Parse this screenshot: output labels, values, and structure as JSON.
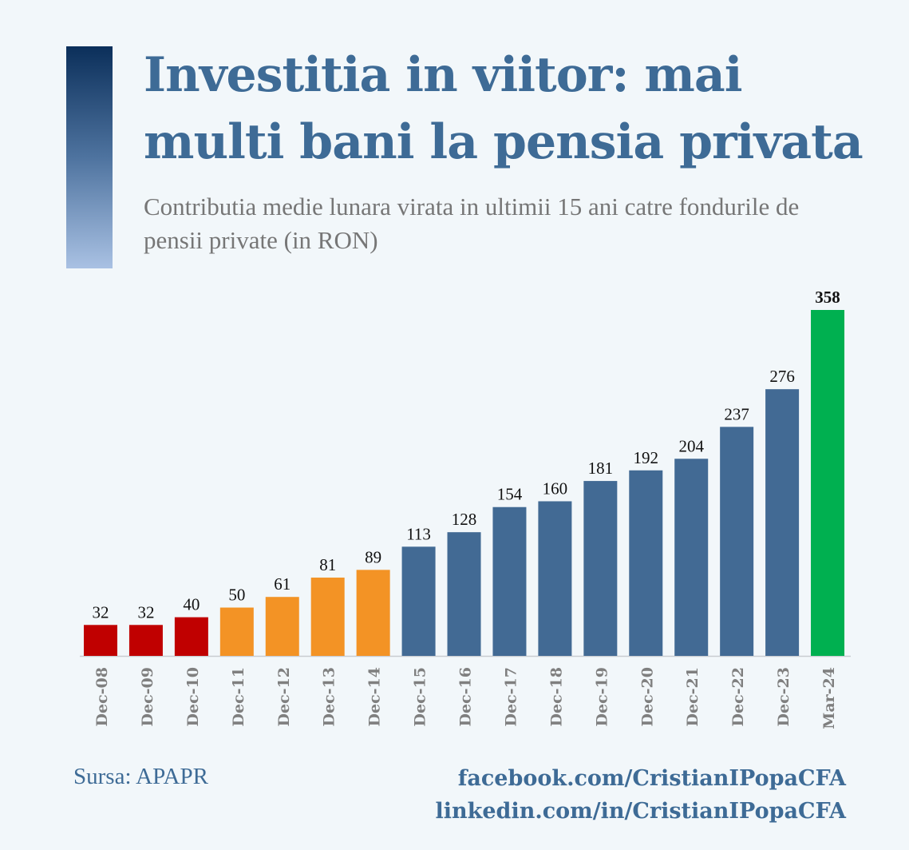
{
  "title": "Investitia in viitor: mai multi bani la pensia privata",
  "subtitle": "Contributia medie lunara virata in ultimii 15 ani catre fondurile de pensii private (in RON)",
  "source": "Sursa: APAPR",
  "links": [
    "facebook.com/CristianIPopaCFA",
    "linkedin.com/in/CristianIPopaCFA"
  ],
  "colors": {
    "background": "#F2F7FA",
    "title": "#3E6B96",
    "red": "#C00000",
    "orange": "#F39325",
    "blue": "#426A94",
    "green": "#00B050"
  },
  "chart_data": {
    "type": "bar",
    "title": "Investitia in viitor: mai multi bani la pensia privata",
    "subtitle": "Contributia medie lunara virata in ultimii 15 ani catre fondurile de pensii private (in RON)",
    "categories": [
      "Dec-08",
      "Dec-09",
      "Dec-10",
      "Dec-11",
      "Dec-12",
      "Dec-13",
      "Dec-14",
      "Dec-15",
      "Dec-16",
      "Dec-17",
      "Dec-18",
      "Dec-19",
      "Dec-20",
      "Dec-21",
      "Dec-22",
      "Dec-23",
      "Mar-24"
    ],
    "values": [
      32,
      32,
      40,
      50,
      61,
      81,
      89,
      113,
      128,
      154,
      160,
      181,
      192,
      204,
      237,
      276,
      358
    ],
    "bar_colors": [
      "#C00000",
      "#C00000",
      "#C00000",
      "#F39325",
      "#F39325",
      "#F39325",
      "#F39325",
      "#426A94",
      "#426A94",
      "#426A94",
      "#426A94",
      "#426A94",
      "#426A94",
      "#426A94",
      "#426A94",
      "#426A94",
      "#00B050"
    ],
    "ylim": [
      0,
      358
    ],
    "grid": false,
    "data_labels": true,
    "legend": "none"
  }
}
